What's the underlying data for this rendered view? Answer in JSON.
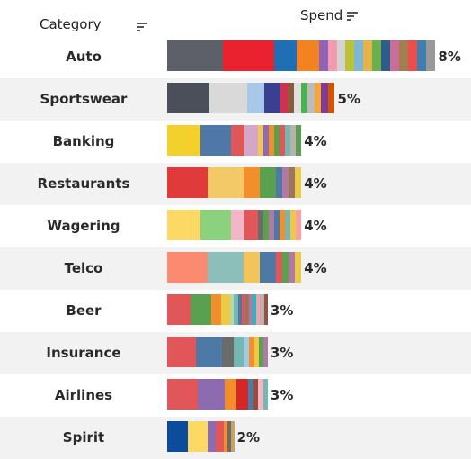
{
  "header": {
    "category_label": "Category",
    "spend_label": "Spend",
    "sort_icon": "sort-descending-icon"
  },
  "chart_data": {
    "type": "bar",
    "orientation": "horizontal",
    "stacked": true,
    "xlabel": "Spend",
    "ylabel": "Category",
    "categories": [
      "Auto",
      "Sportswear",
      "Banking",
      "Restaurants",
      "Wagering",
      "Telco",
      "Beer",
      "Insurance",
      "Airlines",
      "Spirit"
    ],
    "values_label": [
      "8%",
      "5%",
      "4%",
      "4%",
      "4%",
      "4%",
      "3%",
      "3%",
      "3%",
      "2%"
    ],
    "values": [
      8,
      5,
      4,
      4,
      4,
      4,
      3,
      3,
      3,
      2
    ],
    "bar_segments": [
      [
        "#5d6068",
        "#ea2230",
        "#1f6fb5",
        "#f58220",
        "#8e63b8",
        "#f59bb0",
        "#d3d3d3",
        "#b9c238",
        "#7fb6d6",
        "#e4b34a",
        "#6ab04c",
        "#2f5d8a",
        "#c96e9a",
        "#a37e50",
        "#ee4d4d",
        "#3d7fb0",
        "#999999"
      ],
      [
        "#4a4f5a",
        "#d9d9d9",
        "#a7c8e6",
        "#3a3f8f",
        "#d0314f",
        "#8b5a3c",
        "#e0e0e0",
        "#4caf50",
        "#bbbbbb",
        "#f2a73b",
        "#7d3c98",
        "#d35400"
      ],
      [
        "#f4d02c",
        "#4f78a8",
        "#e15759",
        "#d4a6c8",
        "#f2c45a",
        "#8c6bb1",
        "#f28e2b",
        "#59a14f",
        "#e15759",
        "#76b7b2",
        "#bab0ac",
        "#59a14f"
      ],
      [
        "#e03a3a",
        "#f2c966",
        "#f28e2b",
        "#59a14f",
        "#4e79a7",
        "#b07aa1",
        "#9c755f",
        "#edc948"
      ],
      [
        "#fcd865",
        "#8cd17d",
        "#f5b5c8",
        "#e15759",
        "#6b6b6b",
        "#59a14f",
        "#b07aa1",
        "#4e79a7",
        "#f28e2b",
        "#76b7b2",
        "#edc948",
        "#ff9da7"
      ],
      [
        "#fa8a70",
        "#8cbfb9",
        "#f2c45a",
        "#4e79a7",
        "#e15759",
        "#59a14f",
        "#b07aa1",
        "#edc948"
      ],
      [
        "#e15759",
        "#59a14f",
        "#f28e2b",
        "#edc948",
        "#b6d7a8",
        "#76b7b2",
        "#4e79a7",
        "#e15759",
        "#9c755f",
        "#b07aa1",
        "#17becf",
        "#ff9da7",
        "#bab0ac",
        "#8c564b"
      ],
      [
        "#e15759",
        "#4e79a7",
        "#6b6b6b",
        "#76b7b2",
        "#a0cbe8",
        "#f28e2b",
        "#edc948",
        "#59a14f",
        "#b07aa1"
      ],
      [
        "#e15759",
        "#8c6bb1",
        "#f28e2b",
        "#d62728",
        "#4e79a7",
        "#9c4a3a",
        "#f5b5c8",
        "#76b7b2"
      ],
      [
        "#0d4c9c",
        "#fcd865",
        "#8c6bb1",
        "#e15759",
        "#f28e2b",
        "#6b6b6b",
        "#c9a35a"
      ]
    ]
  }
}
